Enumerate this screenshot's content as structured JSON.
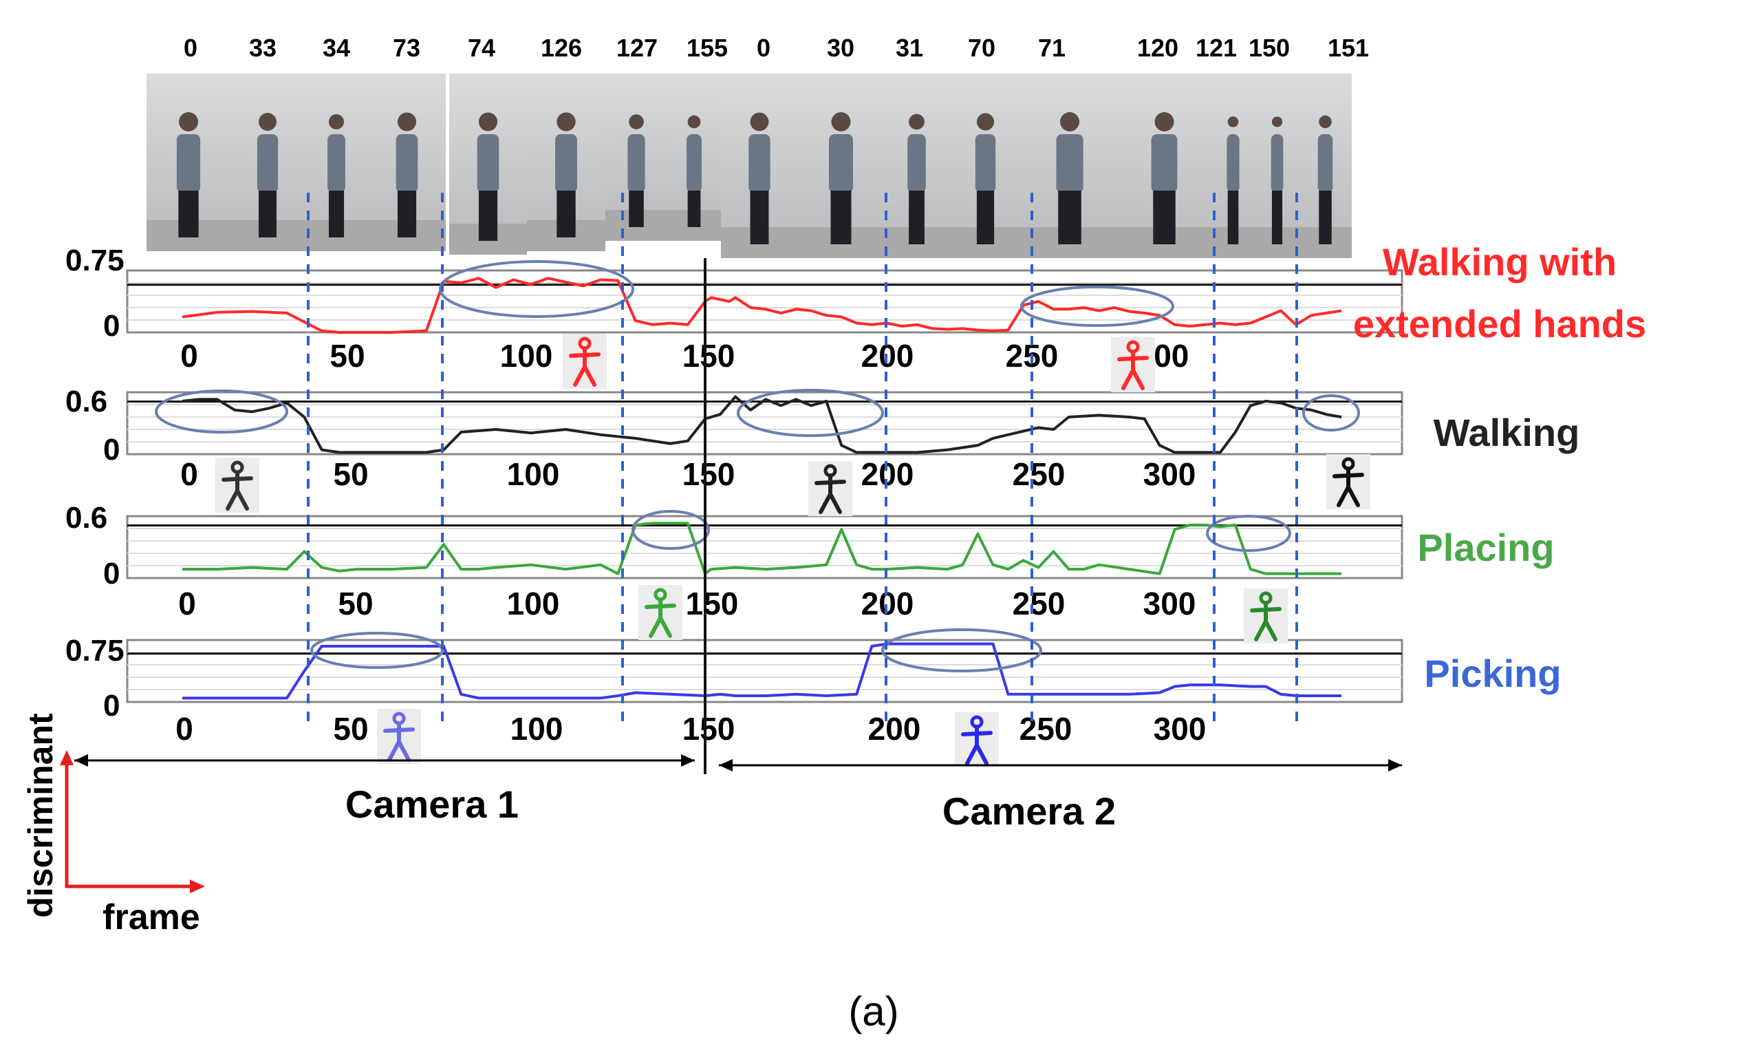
{
  "caption": "(a)",
  "image_strip": {
    "frame_labels": [
      "0",
      "33",
      "34",
      "73",
      "74",
      "126",
      "127",
      "155",
      "0",
      "30",
      "31",
      "70",
      "71",
      "120",
      "121",
      "150",
      "151"
    ]
  },
  "camera_labels": [
    "Camera 1",
    "Camera 2"
  ],
  "axis_key": {
    "y_label": "discriminant",
    "x_label": "frame"
  },
  "colors": {
    "red": "#ff2a2a",
    "black": "#222222",
    "green": "#3aa83a",
    "blue": "#3a3ae6",
    "green_label": "#4aa84a",
    "blue_label": "#3a68d8",
    "marker": "#2f5fd0",
    "ellipse": "#6a7fb0"
  },
  "chart_data": [
    {
      "type": "line",
      "title": "Walking with extended hands",
      "title_lines": [
        "Walking with",
        "extended hands"
      ],
      "color": "red",
      "y_top_label": "0.75",
      "y_bottom_label": "0",
      "ylim": [
        0,
        0.8
      ],
      "x_tick_labels": [
        "0",
        "50",
        "100",
        "150",
        "200",
        "250",
        "300"
      ],
      "x": [
        0,
        10,
        20,
        30,
        40,
        45,
        50,
        60,
        70,
        75,
        80,
        85,
        90,
        95,
        100,
        105,
        110,
        115,
        120,
        125,
        130,
        135,
        140,
        145,
        150,
        152,
        158,
        160,
        165,
        170,
        175,
        180,
        185,
        190,
        195,
        200,
        205,
        210,
        215,
        220,
        225,
        230,
        235,
        240,
        245,
        250,
        255,
        260,
        265,
        270,
        275,
        280,
        285,
        290,
        295,
        300,
        305,
        310,
        315,
        320,
        325,
        330,
        335,
        340,
        345,
        350,
        355,
        360
      ],
      "values": [
        0.2,
        0.26,
        0.27,
        0.25,
        0.02,
        0.0,
        0.0,
        0.0,
        0.02,
        0.66,
        0.64,
        0.7,
        0.58,
        0.68,
        0.62,
        0.7,
        0.65,
        0.6,
        0.68,
        0.67,
        0.15,
        0.1,
        0.12,
        0.1,
        0.4,
        0.45,
        0.4,
        0.45,
        0.32,
        0.3,
        0.25,
        0.3,
        0.28,
        0.22,
        0.2,
        0.12,
        0.1,
        0.12,
        0.08,
        0.1,
        0.05,
        0.04,
        0.05,
        0.03,
        0.02,
        0.03,
        0.35,
        0.4,
        0.3,
        0.3,
        0.32,
        0.28,
        0.32,
        0.27,
        0.25,
        0.22,
        0.1,
        0.08,
        0.1,
        0.12,
        0.1,
        0.12,
        0.2,
        0.28,
        0.1,
        0.22,
        0.25,
        0.28
      ]
    },
    {
      "type": "line",
      "title": "Walking",
      "title_lines": [
        "Walking"
      ],
      "color": "black",
      "y_top_label": "0.6",
      "y_bottom_label": "0",
      "ylim": [
        0,
        0.7
      ],
      "x_tick_labels": [
        "0",
        "50",
        "100",
        "150",
        "200",
        "250",
        "300"
      ],
      "x": [
        0,
        5,
        10,
        15,
        20,
        25,
        30,
        35,
        40,
        45,
        50,
        60,
        70,
        75,
        80,
        90,
        100,
        110,
        120,
        130,
        140,
        145,
        150,
        152,
        155,
        160,
        165,
        170,
        175,
        180,
        185,
        190,
        195,
        200,
        210,
        220,
        230,
        240,
        245,
        250,
        260,
        265,
        270,
        280,
        290,
        295,
        300,
        305,
        310,
        315,
        320,
        325,
        330,
        335,
        340,
        345,
        350,
        355,
        360
      ],
      "values": [
        0.6,
        0.62,
        0.62,
        0.5,
        0.48,
        0.52,
        0.58,
        0.42,
        0.05,
        0.02,
        0.02,
        0.02,
        0.02,
        0.05,
        0.25,
        0.28,
        0.24,
        0.28,
        0.22,
        0.18,
        0.12,
        0.15,
        0.4,
        0.42,
        0.45,
        0.65,
        0.5,
        0.62,
        0.55,
        0.62,
        0.55,
        0.6,
        0.1,
        0.02,
        0.02,
        0.02,
        0.05,
        0.1,
        0.18,
        0.22,
        0.3,
        0.28,
        0.42,
        0.44,
        0.42,
        0.4,
        0.1,
        0.02,
        0.02,
        0.02,
        0.02,
        0.25,
        0.55,
        0.6,
        0.58,
        0.52,
        0.5,
        0.45,
        0.42
      ]
    },
    {
      "type": "line",
      "title": "Placing",
      "title_lines": [
        "Placing"
      ],
      "color": "green",
      "y_top_label": "0.6",
      "y_bottom_label": "0",
      "ylim": [
        0,
        0.7
      ],
      "x_tick_labels": [
        "0",
        "50",
        "100",
        "150",
        "200",
        "250",
        "300"
      ],
      "x": [
        0,
        10,
        20,
        30,
        35,
        40,
        45,
        50,
        60,
        70,
        75,
        80,
        85,
        90,
        100,
        110,
        120,
        125,
        130,
        135,
        140,
        145,
        150,
        152,
        160,
        170,
        180,
        190,
        195,
        200,
        205,
        210,
        220,
        230,
        235,
        240,
        245,
        250,
        255,
        260,
        265,
        270,
        275,
        280,
        290,
        300,
        305,
        310,
        315,
        320,
        325,
        330,
        335,
        340,
        345,
        350,
        355,
        360
      ],
      "values": [
        0.1,
        0.1,
        0.12,
        0.1,
        0.3,
        0.12,
        0.08,
        0.1,
        0.1,
        0.12,
        0.38,
        0.1,
        0.1,
        0.12,
        0.15,
        0.1,
        0.15,
        0.05,
        0.6,
        0.62,
        0.62,
        0.62,
        0.05,
        0.1,
        0.12,
        0.1,
        0.12,
        0.15,
        0.55,
        0.15,
        0.1,
        0.1,
        0.12,
        0.1,
        0.15,
        0.5,
        0.15,
        0.1,
        0.2,
        0.12,
        0.3,
        0.1,
        0.1,
        0.15,
        0.1,
        0.05,
        0.55,
        0.6,
        0.6,
        0.58,
        0.6,
        0.1,
        0.05,
        0.05,
        0.05,
        0.05,
        0.05,
        0.05
      ]
    },
    {
      "type": "line",
      "title": "Picking",
      "title_lines": [
        "Picking"
      ],
      "color": "blue",
      "y_top_label": "0.75",
      "y_bottom_label": "0",
      "ylim": [
        0,
        0.8
      ],
      "x_tick_labels": [
        "0",
        "50",
        "100",
        "150",
        "200",
        "250",
        "300"
      ],
      "x": [
        0,
        10,
        20,
        30,
        35,
        40,
        45,
        50,
        60,
        70,
        75,
        80,
        85,
        90,
        100,
        110,
        120,
        125,
        130,
        140,
        150,
        155,
        160,
        170,
        180,
        190,
        200,
        205,
        210,
        220,
        230,
        240,
        245,
        250,
        255,
        260,
        270,
        280,
        290,
        300,
        305,
        310,
        320,
        330,
        335,
        340,
        345,
        350,
        355,
        360
      ],
      "values": [
        0.05,
        0.05,
        0.05,
        0.05,
        0.4,
        0.72,
        0.72,
        0.72,
        0.72,
        0.72,
        0.72,
        0.1,
        0.05,
        0.05,
        0.05,
        0.05,
        0.05,
        0.08,
        0.12,
        0.1,
        0.08,
        0.1,
        0.08,
        0.08,
        0.1,
        0.08,
        0.1,
        0.72,
        0.75,
        0.75,
        0.75,
        0.75,
        0.75,
        0.1,
        0.1,
        0.1,
        0.1,
        0.1,
        0.1,
        0.12,
        0.2,
        0.22,
        0.22,
        0.2,
        0.2,
        0.1,
        0.08,
        0.08,
        0.08,
        0.08
      ]
    }
  ]
}
